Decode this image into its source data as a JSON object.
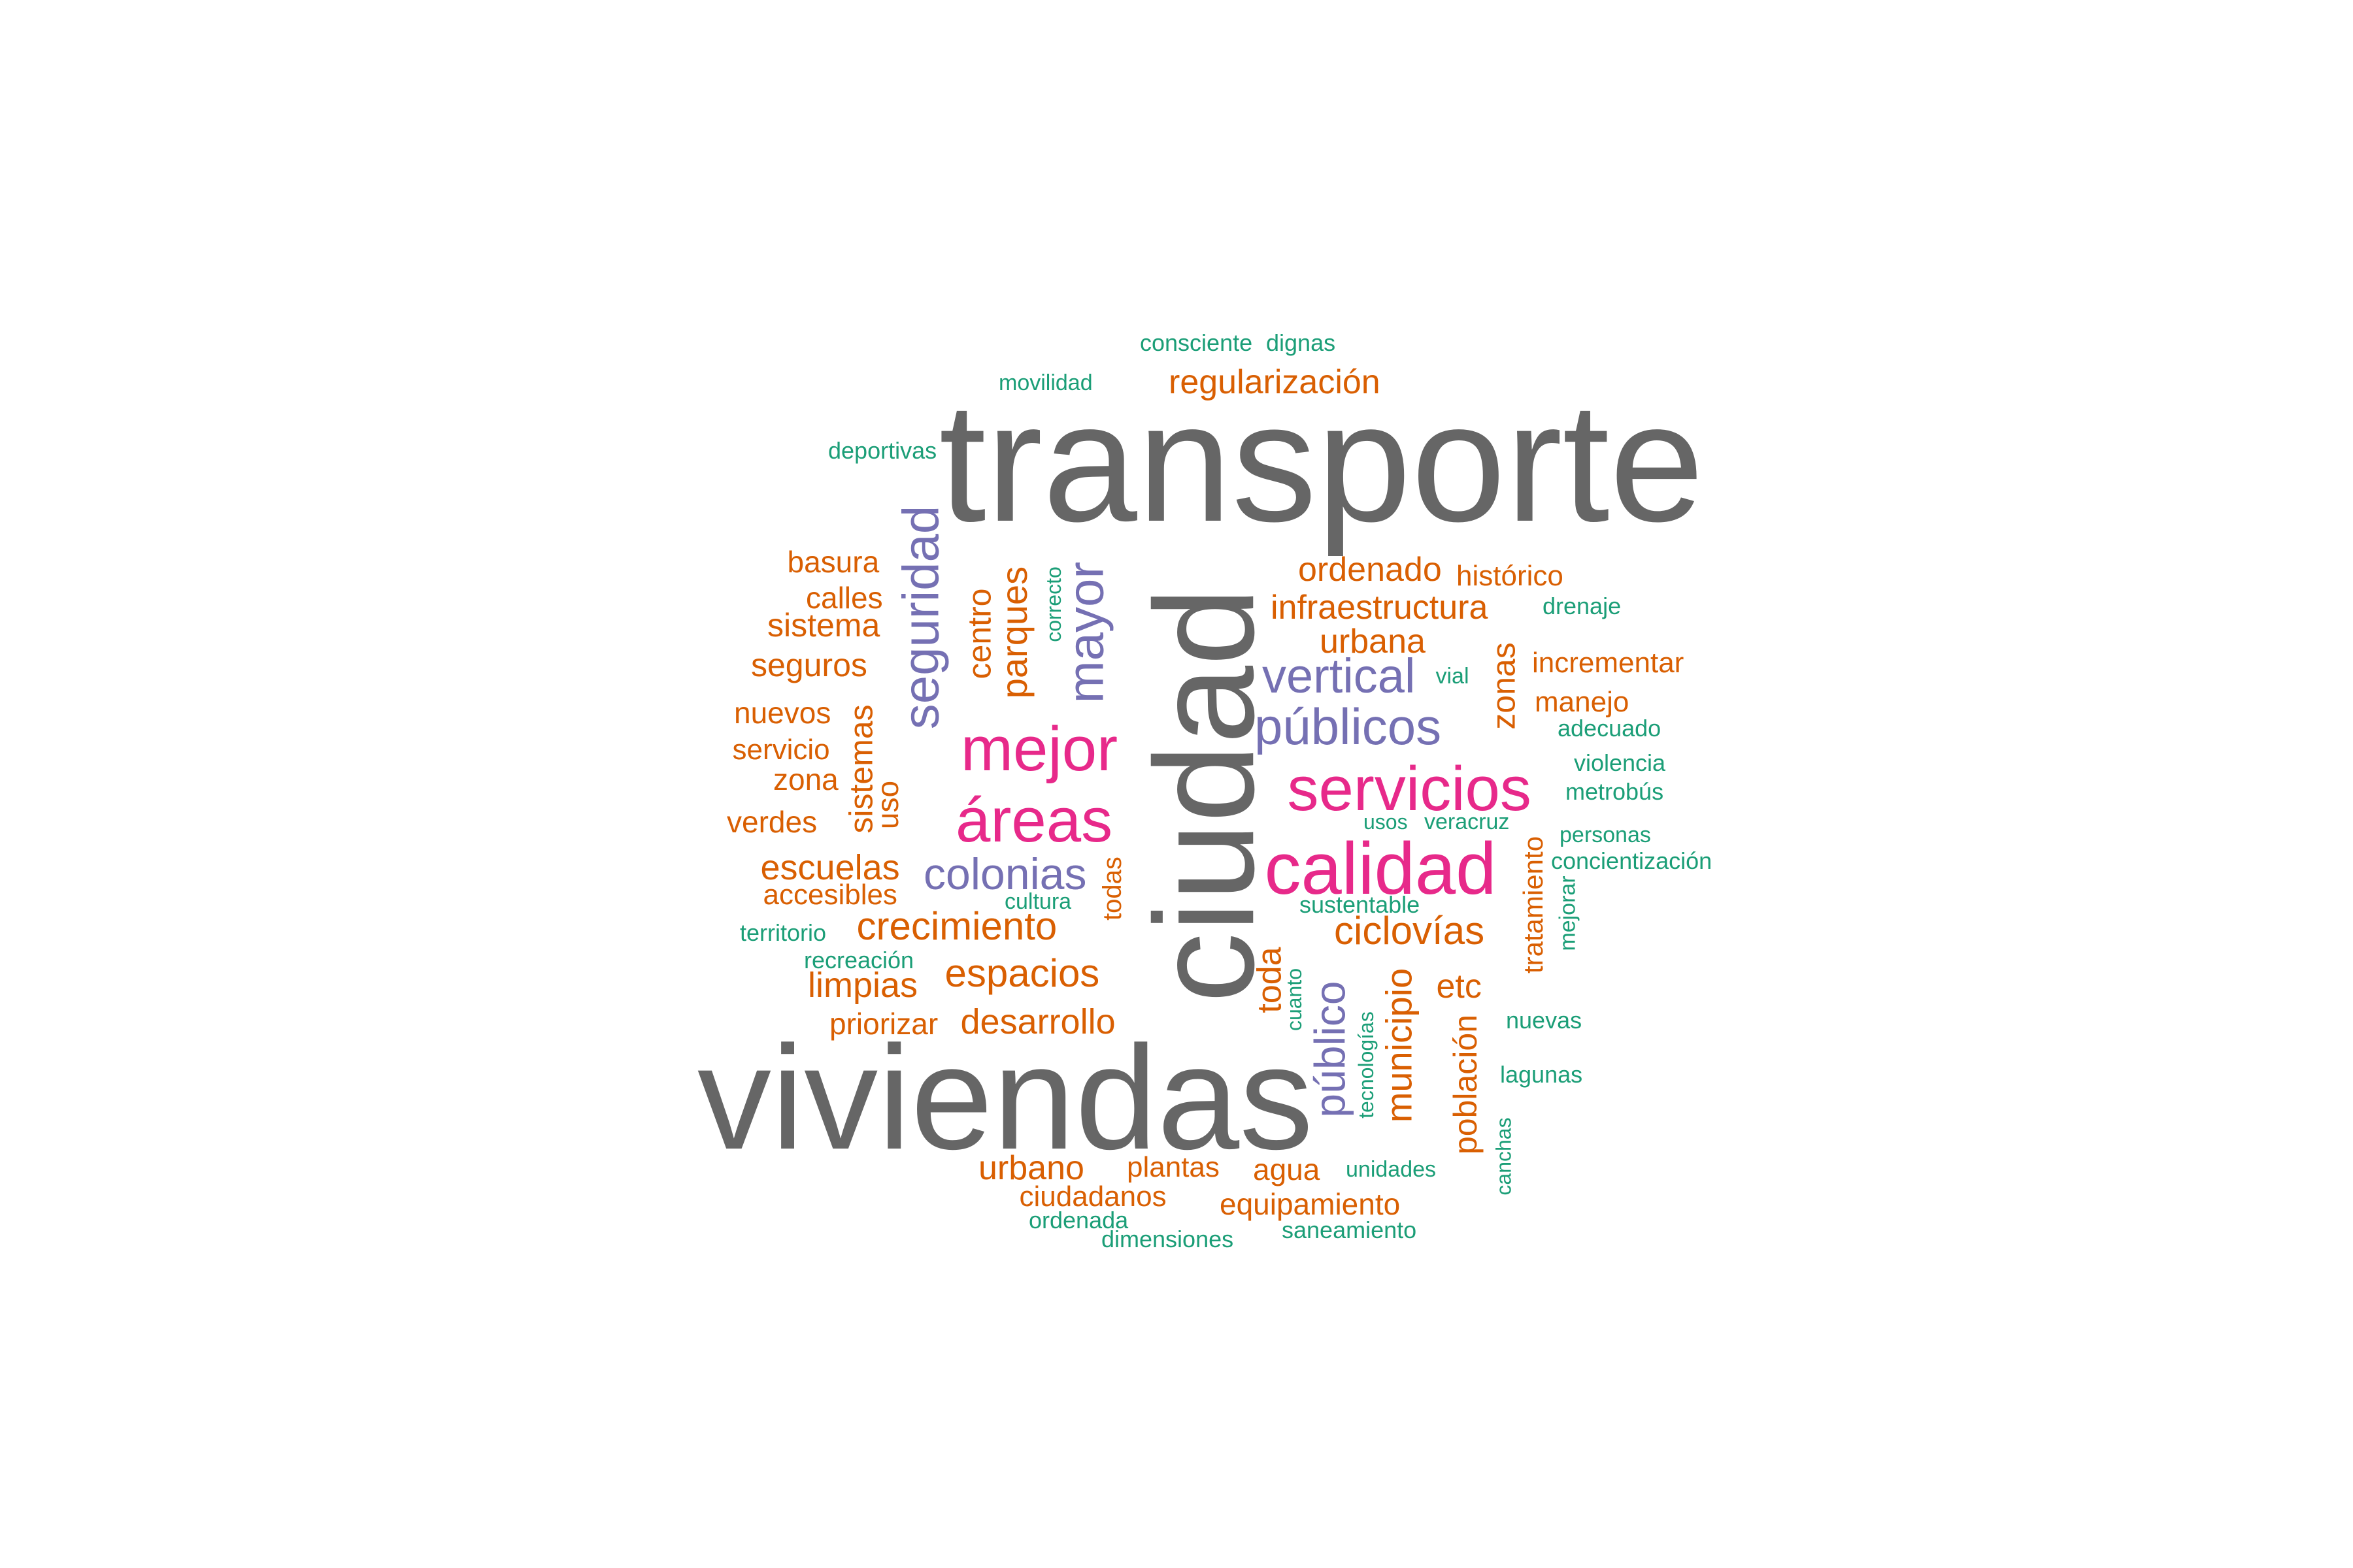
{
  "palette": {
    "gray": "#666666",
    "pink": "#e7298a",
    "purple": "#7570b3",
    "orange": "#d95f02",
    "green": "#1b9e77"
  },
  "words": [
    {
      "text": "transporte",
      "color": "gray"
    },
    {
      "text": "viviendas",
      "color": "gray"
    },
    {
      "text": "ciudad",
      "color": "gray",
      "vertical": true
    },
    {
      "text": "calidad",
      "color": "pink"
    },
    {
      "text": "servicios",
      "color": "pink"
    },
    {
      "text": "mejor",
      "color": "pink"
    },
    {
      "text": "áreas",
      "color": "pink"
    },
    {
      "text": "seguridad",
      "color": "purple",
      "vertical": true
    },
    {
      "text": "mayor",
      "color": "purple",
      "vertical": true
    },
    {
      "text": "públicos",
      "color": "purple"
    },
    {
      "text": "vertical",
      "color": "purple"
    },
    {
      "text": "colonias",
      "color": "purple"
    },
    {
      "text": "público",
      "color": "purple",
      "vertical": true
    },
    {
      "text": "regularización",
      "color": "orange"
    },
    {
      "text": "ordenado",
      "color": "orange"
    },
    {
      "text": "infraestructura",
      "color": "orange"
    },
    {
      "text": "urbana",
      "color": "orange"
    },
    {
      "text": "histórico",
      "color": "orange"
    },
    {
      "text": "incrementar",
      "color": "orange"
    },
    {
      "text": "manejo",
      "color": "orange"
    },
    {
      "text": "zonas",
      "color": "orange",
      "vertical": true
    },
    {
      "text": "basura",
      "color": "orange"
    },
    {
      "text": "calles",
      "color": "orange"
    },
    {
      "text": "sistema",
      "color": "orange"
    },
    {
      "text": "seguros",
      "color": "orange"
    },
    {
      "text": "nuevos",
      "color": "orange"
    },
    {
      "text": "servicio",
      "color": "orange"
    },
    {
      "text": "zona",
      "color": "orange"
    },
    {
      "text": "verdes",
      "color": "orange"
    },
    {
      "text": "sistemas",
      "color": "orange",
      "vertical": true
    },
    {
      "text": "uso",
      "color": "orange",
      "vertical": true
    },
    {
      "text": "centro",
      "color": "orange",
      "vertical": true
    },
    {
      "text": "parques",
      "color": "orange",
      "vertical": true
    },
    {
      "text": "escuelas",
      "color": "orange"
    },
    {
      "text": "accesibles",
      "color": "orange"
    },
    {
      "text": "crecimiento",
      "color": "orange"
    },
    {
      "text": "espacios",
      "color": "orange"
    },
    {
      "text": "limpias",
      "color": "orange"
    },
    {
      "text": "priorizar",
      "color": "orange"
    },
    {
      "text": "desarrollo",
      "color": "orange"
    },
    {
      "text": "todas",
      "color": "orange",
      "vertical": true
    },
    {
      "text": "ciclovías",
      "color": "orange"
    },
    {
      "text": "toda",
      "color": "orange",
      "vertical": true
    },
    {
      "text": "municipio",
      "color": "orange",
      "vertical": true
    },
    {
      "text": "etc",
      "color": "orange"
    },
    {
      "text": "tratamiento",
      "color": "orange",
      "vertical": true
    },
    {
      "text": "población",
      "color": "orange",
      "vertical": true
    },
    {
      "text": "urbano",
      "color": "orange"
    },
    {
      "text": "plantas",
      "color": "orange"
    },
    {
      "text": "agua",
      "color": "orange"
    },
    {
      "text": "ciudadanos",
      "color": "orange"
    },
    {
      "text": "equipamiento",
      "color": "orange"
    },
    {
      "text": "consciente",
      "color": "green"
    },
    {
      "text": "dignas",
      "color": "green"
    },
    {
      "text": "movilidad",
      "color": "green"
    },
    {
      "text": "deportivas",
      "color": "green"
    },
    {
      "text": "correcto",
      "color": "green",
      "vertical": true
    },
    {
      "text": "drenaje",
      "color": "green"
    },
    {
      "text": "vial",
      "color": "green"
    },
    {
      "text": "adecuado",
      "color": "green"
    },
    {
      "text": "violencia",
      "color": "green"
    },
    {
      "text": "metrobús",
      "color": "green"
    },
    {
      "text": "usos",
      "color": "green"
    },
    {
      "text": "veracruz",
      "color": "green"
    },
    {
      "text": "personas",
      "color": "green"
    },
    {
      "text": "concientización",
      "color": "green"
    },
    {
      "text": "mejorar",
      "color": "green",
      "vertical": true
    },
    {
      "text": "cultura",
      "color": "green"
    },
    {
      "text": "sustentable",
      "color": "green"
    },
    {
      "text": "territorio",
      "color": "green"
    },
    {
      "text": "recreación",
      "color": "green"
    },
    {
      "text": "cuanto",
      "color": "green",
      "vertical": true
    },
    {
      "text": "tecnologías",
      "color": "green",
      "vertical": true
    },
    {
      "text": "nuevas",
      "color": "green"
    },
    {
      "text": "lagunas",
      "color": "green"
    },
    {
      "text": "canchas",
      "color": "green",
      "vertical": true
    },
    {
      "text": "unidades",
      "color": "green"
    },
    {
      "text": "ordenada",
      "color": "green"
    },
    {
      "text": "dimensiones",
      "color": "green"
    },
    {
      "text": "saneamiento",
      "color": "green"
    }
  ]
}
